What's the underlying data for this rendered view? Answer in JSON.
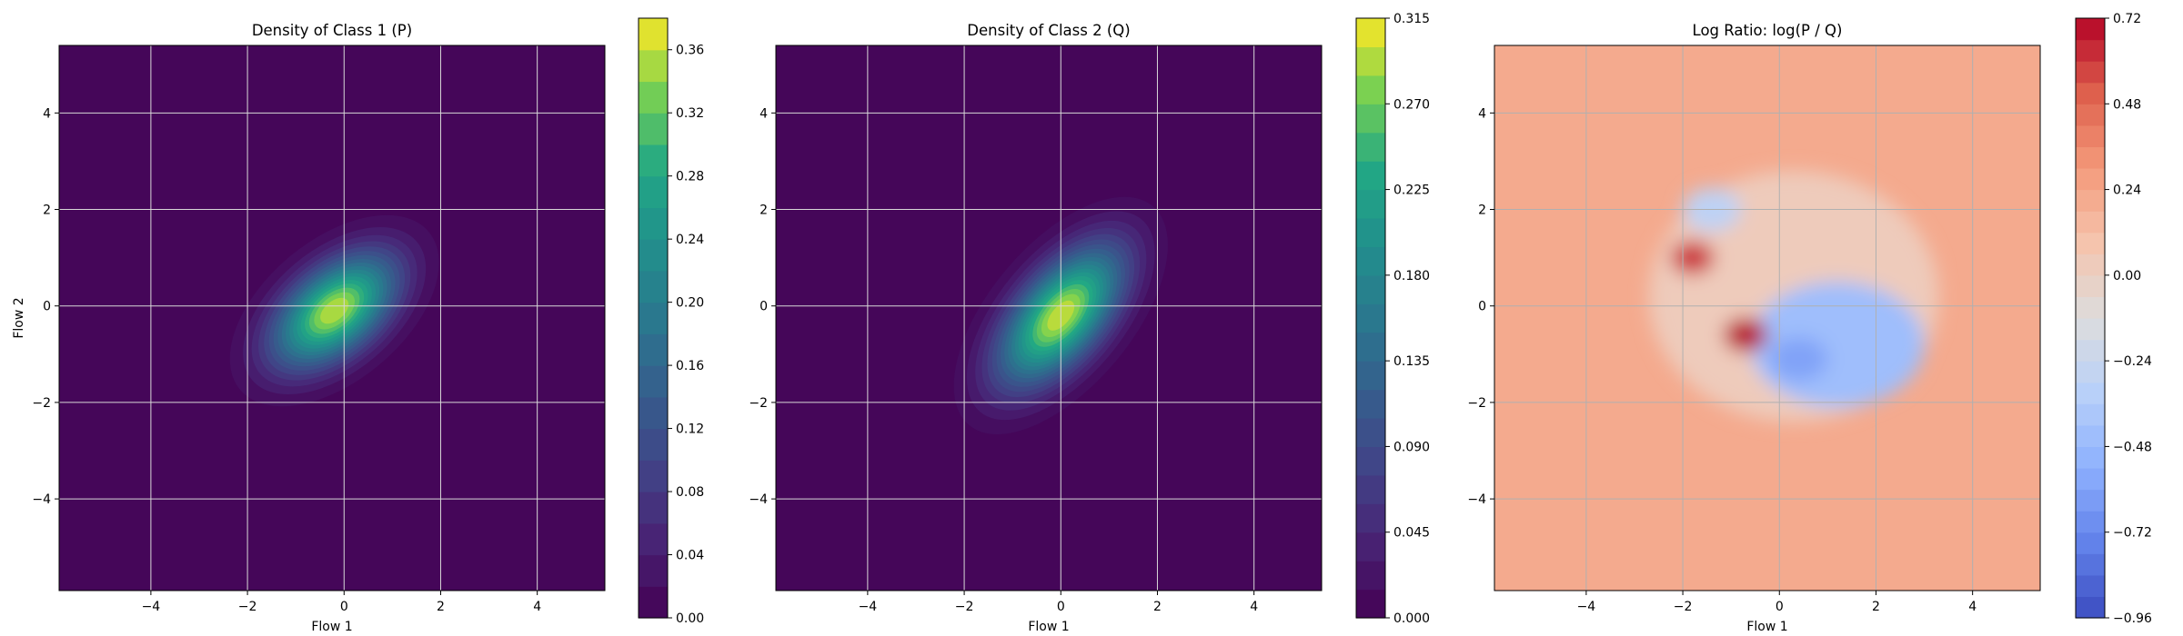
{
  "chart_data": [
    {
      "type": "heatmap",
      "title": "Density of Class 1 (P)",
      "xlabel": "Flow 1",
      "ylabel": "Flow 2",
      "xlim": [
        -5.9,
        5.4
      ],
      "ylim": [
        -5.9,
        5.4
      ],
      "xticks": [
        "−4",
        "−2",
        "0",
        "2",
        "4"
      ],
      "yticks": [
        "−4",
        "−2",
        "0",
        "2",
        "4"
      ],
      "grid": true,
      "colormap": "viridis",
      "levels": 19,
      "colorbar": {
        "min": 0,
        "max": 0.38,
        "ticks": [
          0.0,
          0.04,
          0.08,
          0.12,
          0.16,
          0.2,
          0.24,
          0.28,
          0.32,
          0.36
        ],
        "tick_labels": [
          "0.00",
          "0.04",
          "0.08",
          "0.12",
          "0.16",
          "0.20",
          "0.24",
          "0.28",
          "0.32",
          "0.36"
        ]
      },
      "density_summary": {
        "center": [
          -0.2,
          -0.1
        ],
        "peak": 0.37,
        "sigma_major": 1.05,
        "sigma_minor": 0.6,
        "orientation_deg": -40
      }
    },
    {
      "type": "heatmap",
      "title": "Density of Class 2 (Q)",
      "xlabel": "Flow 1",
      "ylabel": "",
      "xlim": [
        -5.9,
        5.4
      ],
      "ylim": [
        -5.9,
        5.4
      ],
      "xticks": [
        "−4",
        "−2",
        "0",
        "2",
        "4"
      ],
      "yticks": [
        "−4",
        "−2",
        "0",
        "2",
        "4"
      ],
      "grid": true,
      "colormap": "viridis",
      "levels": 21,
      "colorbar": {
        "min": 0,
        "max": 0.315,
        "ticks": [
          0.0,
          0.045,
          0.09,
          0.135,
          0.18,
          0.225,
          0.27,
          0.315
        ],
        "tick_labels": [
          "0.000",
          "0.045",
          "0.090",
          "0.135",
          "0.180",
          "0.225",
          "0.270",
          "0.315"
        ]
      },
      "density_summary": {
        "center": [
          0.0,
          -0.2
        ],
        "peak": 0.31,
        "sigma_major": 1.2,
        "sigma_minor": 0.6,
        "orientation_deg": -50
      }
    },
    {
      "type": "heatmap",
      "title": "Log Ratio: log(P / Q)",
      "xlabel": "Flow 1",
      "ylabel": "",
      "xlim": [
        -5.9,
        5.4
      ],
      "ylim": [
        -5.9,
        5.4
      ],
      "xticks": [
        "−4",
        "−2",
        "0",
        "2",
        "4"
      ],
      "yticks": [
        "−4",
        "−2",
        "0",
        "2",
        "4"
      ],
      "grid": true,
      "colormap": "coolwarm",
      "levels": 28,
      "colorbar": {
        "min": -0.96,
        "max": 0.72,
        "ticks": [
          -0.96,
          -0.72,
          -0.48,
          -0.24,
          0.0,
          0.24,
          0.48,
          0.72
        ],
        "tick_labels": [
          "−0.96",
          "−0.72",
          "−0.48",
          "−0.24",
          "0.00",
          "0.24",
          "0.48",
          "0.72"
        ]
      },
      "features": [
        {
          "kind": "background",
          "value": 0.22
        },
        {
          "kind": "negative-region",
          "center": [
            1.2,
            -0.8
          ],
          "value": -0.45
        },
        {
          "kind": "negative-spot",
          "center": [
            -1.4,
            2.0
          ],
          "value": -0.3
        },
        {
          "kind": "negative-spot",
          "center": [
            0.4,
            -1.1
          ],
          "value": -0.6
        },
        {
          "kind": "positive-spot",
          "center": [
            -0.7,
            -0.6
          ],
          "value": 0.7
        },
        {
          "kind": "positive-spot",
          "center": [
            -1.8,
            1.0
          ],
          "value": 0.6
        }
      ]
    }
  ]
}
